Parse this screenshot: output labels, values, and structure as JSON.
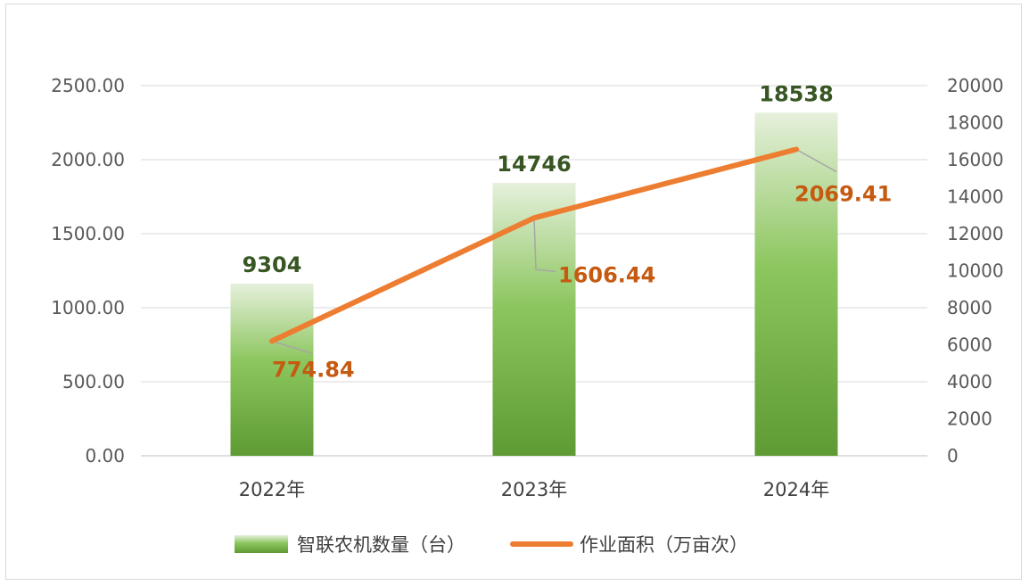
{
  "chart_data": {
    "type": "bar+line",
    "categories": [
      "2022年",
      "2023年",
      "2024年"
    ],
    "series": [
      {
        "name": "智联农机数量（台）",
        "type": "bar",
        "axis": "right",
        "values": [
          9304,
          14746,
          18538
        ],
        "color": "#70ad47"
      },
      {
        "name": "作业面积（万亩次）",
        "type": "line",
        "axis": "left",
        "values": [
          774.84,
          1606.44,
          2069.41
        ],
        "color": "#ed7d31"
      }
    ],
    "bar_labels": [
      "9304",
      "14746",
      "18538"
    ],
    "line_labels": [
      "774.84",
      "1606.44",
      "2069.41"
    ],
    "y_left": {
      "min": 0,
      "max": 2500,
      "ticks": [
        "0.00",
        "500.00",
        "1000.00",
        "1500.00",
        "2000.00",
        "2500.00"
      ]
    },
    "y_right": {
      "min": 0,
      "max": 20000,
      "ticks": [
        "0",
        "2000",
        "4000",
        "6000",
        "8000",
        "10000",
        "12000",
        "14000",
        "16000",
        "18000",
        "20000"
      ]
    },
    "grid": true,
    "legend_position": "bottom",
    "label_colors": {
      "bar": "#375623",
      "line": "#c55a11",
      "leader": "#a6a6a6"
    }
  }
}
